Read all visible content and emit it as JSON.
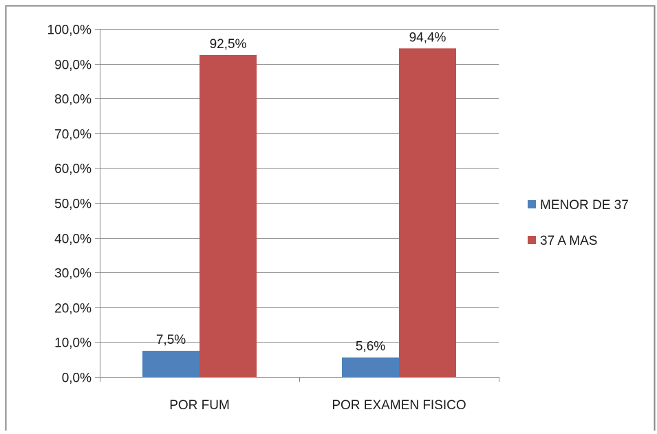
{
  "chart_data": {
    "type": "bar",
    "categories": [
      "POR FUM",
      "POR EXAMEN FISICO"
    ],
    "series": [
      {
        "name": "MENOR DE 37",
        "values": [
          7.5,
          5.6
        ],
        "labels": [
          "7,5%",
          "5,6%"
        ],
        "color": "#4f81bd"
      },
      {
        "name": "37 A MAS",
        "values": [
          92.5,
          94.4
        ],
        "labels": [
          "92,5%",
          "94,4%"
        ],
        "color": "#c0504d"
      }
    ],
    "y_ticks": [
      {
        "value": 0,
        "label": "0,0%"
      },
      {
        "value": 10,
        "label": "10,0%"
      },
      {
        "value": 20,
        "label": "20,0%"
      },
      {
        "value": 30,
        "label": "30,0%"
      },
      {
        "value": 40,
        "label": "40,0%"
      },
      {
        "value": 50,
        "label": "50,0%"
      },
      {
        "value": 60,
        "label": "60,0%"
      },
      {
        "value": 70,
        "label": "70,0%"
      },
      {
        "value": 80,
        "label": "80,0%"
      },
      {
        "value": 90,
        "label": "90,0%"
      },
      {
        "value": 100,
        "label": "100,0%"
      }
    ],
    "ylim": [
      0,
      100
    ],
    "grid": true,
    "legend_position": "right",
    "title": "",
    "xlabel": "",
    "ylabel": "",
    "border_color": "#868686",
    "gridline_color": "#868686"
  }
}
